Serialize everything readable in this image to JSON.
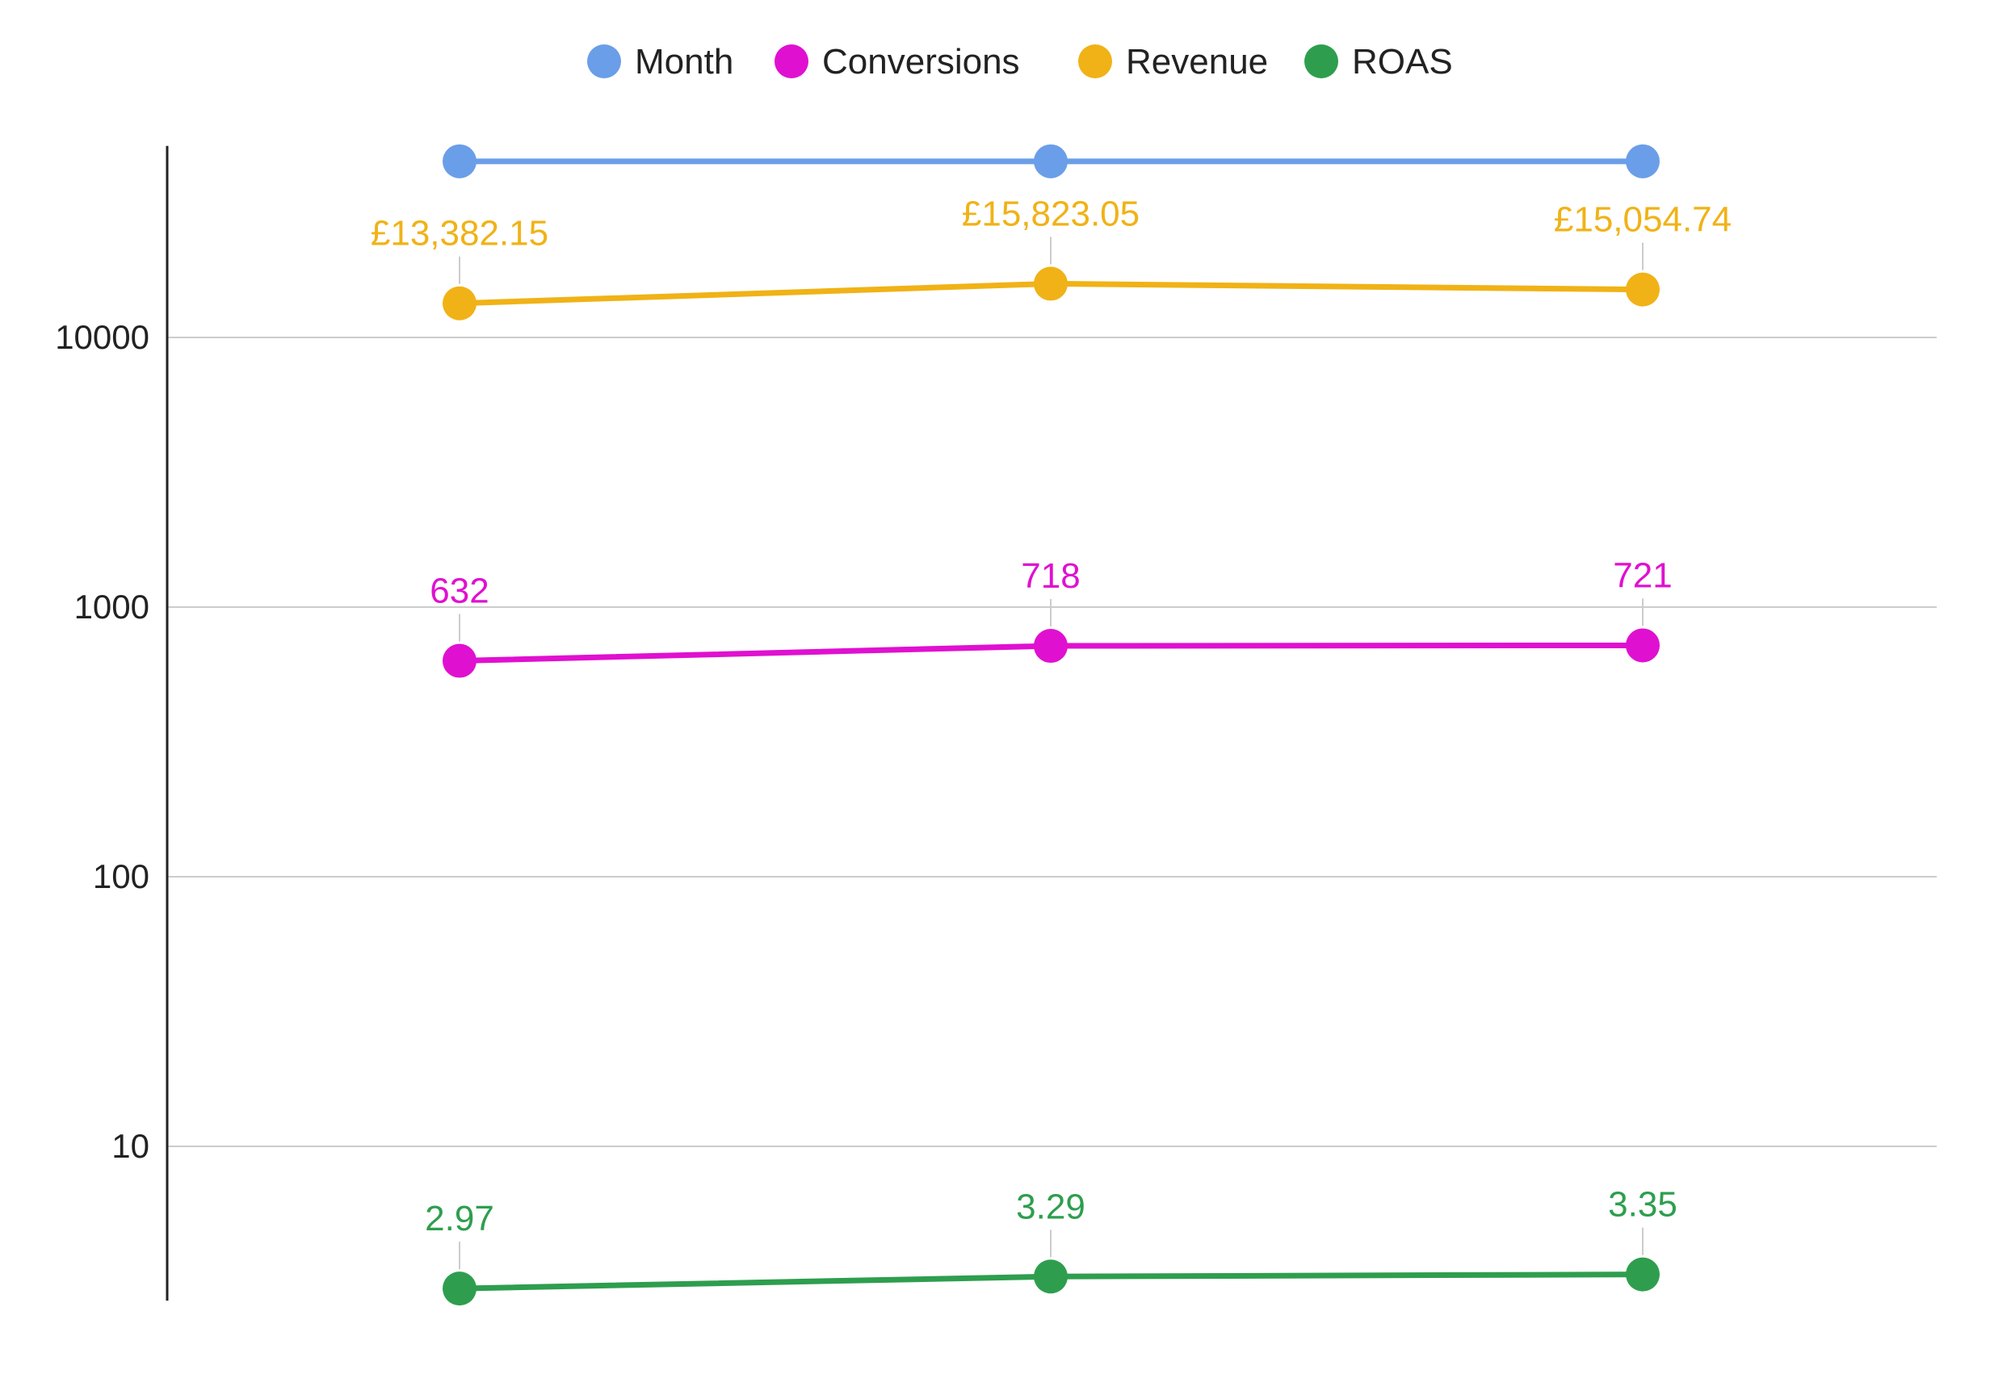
{
  "chart_data": {
    "type": "line",
    "title": "",
    "xlabel": "",
    "ylabel": "",
    "y_scale": "log",
    "ylim": [
      2.5,
      55000
    ],
    "y_ticks": [
      10,
      100,
      1000,
      10000
    ],
    "y_tick_labels": [
      "10",
      "100",
      "1000",
      "10000"
    ],
    "grid": true,
    "legend_position": "top-center",
    "x": [
      1,
      2,
      3
    ],
    "series": [
      {
        "name": "Month",
        "color": "#6a9ee8",
        "values": [
          45000,
          45000,
          45000
        ],
        "labels": [
          "",
          "",
          ""
        ]
      },
      {
        "name": "Conversions",
        "color": "#e010d0",
        "values": [
          632,
          718,
          721
        ],
        "labels": [
          "632",
          "718",
          "721"
        ]
      },
      {
        "name": "Revenue",
        "color": "#f0b216",
        "values": [
          13382.15,
          15823.05,
          15054.74
        ],
        "labels": [
          "£13,382.15",
          "£15,823.05",
          "£15,054.74"
        ]
      },
      {
        "name": "ROAS",
        "color": "#2e9e4e",
        "values": [
          2.97,
          3.29,
          3.35
        ],
        "labels": [
          "2.97",
          "3.29",
          "3.35"
        ]
      }
    ]
  }
}
